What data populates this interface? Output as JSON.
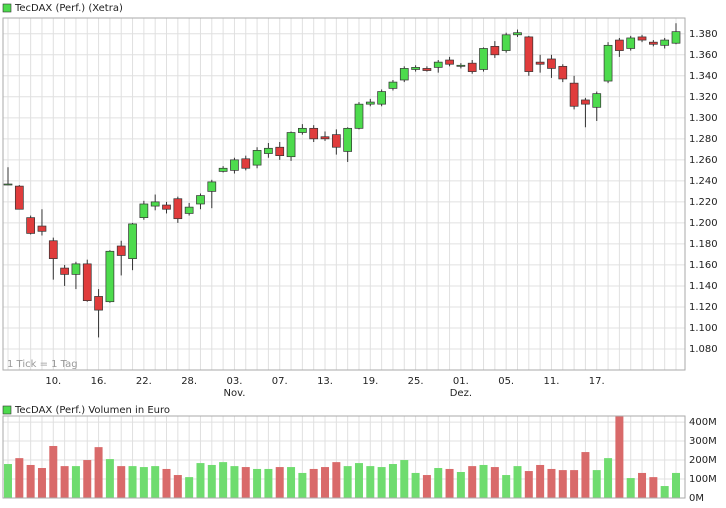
{
  "chart_data": [
    {
      "type": "candlestick",
      "title": "TecDAX (Perf.) (Xetra)",
      "annotation": "1 Tick = 1 Tag",
      "categories": [
        null,
        null,
        null,
        null,
        "10.",
        null,
        null,
        null,
        "16.",
        null,
        null,
        null,
        "22.",
        null,
        null,
        null,
        "28.",
        null,
        null,
        null,
        "03.",
        null,
        null,
        null,
        "07.",
        null,
        null,
        null,
        "13.",
        null,
        null,
        null,
        "19.",
        null,
        null,
        null,
        "25.",
        null,
        null,
        null,
        "01.",
        null,
        null,
        null,
        "05.",
        null,
        null,
        null,
        "11.",
        null,
        null,
        null,
        "17.",
        null,
        null,
        null,
        null,
        null,
        null,
        null
      ],
      "category_sublabels": [
        null,
        null,
        null,
        null,
        null,
        null,
        null,
        null,
        null,
        null,
        null,
        null,
        null,
        null,
        null,
        null,
        null,
        null,
        null,
        null,
        "Nov.",
        null,
        null,
        null,
        null,
        null,
        null,
        null,
        null,
        null,
        null,
        null,
        null,
        null,
        null,
        null,
        null,
        null,
        null,
        null,
        "Dez.",
        null,
        null,
        null,
        null,
        null,
        null,
        null,
        null,
        null,
        null,
        null,
        null,
        null,
        null,
        null,
        null,
        null,
        null,
        null
      ],
      "open": [
        1237,
        1235,
        1205,
        1197,
        1183,
        1157,
        1151,
        1161,
        1130,
        1125,
        1178,
        1166,
        1205,
        1216,
        1217,
        1223,
        1209,
        1218,
        1230,
        1249,
        1250,
        1261,
        1255,
        1266,
        1272,
        1263,
        1286,
        1290,
        1282,
        1284,
        1268,
        1290,
        1313,
        1313,
        1328,
        1336,
        1346,
        1347,
        1348,
        1355,
        1349,
        1352,
        1346,
        1368,
        1364,
        1379,
        1377,
        1353,
        1356,
        1349,
        1333,
        1317,
        1310,
        1335,
        1374,
        1366,
        1377,
        1372,
        1369,
        1371
      ],
      "high": [
        1253,
        1236,
        1207,
        1213,
        1186,
        1160,
        1163,
        1165,
        1137,
        1174,
        1183,
        1200,
        1221,
        1227,
        1220,
        1225,
        1219,
        1228,
        1241,
        1254,
        1262,
        1264,
        1272,
        1276,
        1277,
        1287,
        1294,
        1293,
        1287,
        1289,
        1291,
        1315,
        1318,
        1327,
        1336,
        1349,
        1350,
        1349,
        1355,
        1358,
        1352,
        1355,
        1367,
        1373,
        1381,
        1384,
        1378,
        1360,
        1360,
        1351,
        1340,
        1319,
        1325,
        1372,
        1376,
        1378,
        1379,
        1374,
        1376,
        1390
      ],
      "low": [
        1236,
        1213,
        1189,
        1188,
        1146,
        1140,
        1137,
        1125,
        1091,
        1124,
        1150,
        1155,
        1203,
        1212,
        1209,
        1200,
        1207,
        1213,
        1214,
        1248,
        1247,
        1250,
        1252,
        1262,
        1260,
        1259,
        1284,
        1277,
        1278,
        1265,
        1258,
        1289,
        1311,
        1311,
        1326,
        1334,
        1344,
        1344,
        1343,
        1349,
        1347,
        1342,
        1344,
        1357,
        1362,
        1377,
        1340,
        1343,
        1338,
        1334,
        1308,
        1291,
        1297,
        1333,
        1358,
        1364,
        1372,
        1368,
        1366,
        1370
      ],
      "close": [
        1237,
        1213,
        1190,
        1192,
        1166,
        1151,
        1161,
        1126,
        1117,
        1173,
        1169,
        1199,
        1218,
        1220,
        1213,
        1204,
        1215,
        1226,
        1239,
        1252,
        1260,
        1252,
        1269,
        1271,
        1264,
        1286,
        1290,
        1280,
        1280,
        1272,
        1290,
        1313,
        1315,
        1325,
        1334,
        1347,
        1348,
        1345,
        1353,
        1351,
        1350,
        1344,
        1366,
        1360,
        1379,
        1381,
        1344,
        1351,
        1347,
        1337,
        1311,
        1313,
        1323,
        1369,
        1364,
        1376,
        1374,
        1370,
        1374,
        1382
      ],
      "up_color": "#4ddb4d",
      "down_color": "#e03c3c",
      "ylim": [
        1060,
        1395
      ],
      "yticks": [
        {
          "value": 1080,
          "label": "1.080"
        },
        {
          "value": 1100,
          "label": "1.100"
        },
        {
          "value": 1120,
          "label": "1.120"
        },
        {
          "value": 1140,
          "label": "1.140"
        },
        {
          "value": 1160,
          "label": "1.160"
        },
        {
          "value": 1180,
          "label": "1.180"
        },
        {
          "value": 1200,
          "label": "1.200"
        },
        {
          "value": 1220,
          "label": "1.220"
        },
        {
          "value": 1240,
          "label": "1.240"
        },
        {
          "value": 1260,
          "label": "1.260"
        },
        {
          "value": 1280,
          "label": "1.280"
        },
        {
          "value": 1300,
          "label": "1.300"
        },
        {
          "value": 1320,
          "label": "1.320"
        },
        {
          "value": 1340,
          "label": "1.340"
        },
        {
          "value": 1360,
          "label": "1.360"
        },
        {
          "value": 1380,
          "label": "1.380"
        }
      ],
      "grid": true
    },
    {
      "type": "bar",
      "title": "TecDAX (Perf.) Volumen in Euro",
      "values": [
        179,
        210,
        174,
        158,
        274,
        168,
        168,
        200,
        268,
        205,
        168,
        168,
        163,
        168,
        153,
        121,
        110,
        184,
        174,
        189,
        168,
        163,
        153,
        153,
        163,
        163,
        132,
        153,
        163,
        189,
        168,
        184,
        168,
        163,
        179,
        200,
        132,
        121,
        158,
        153,
        137,
        168,
        174,
        163,
        121,
        168,
        142,
        174,
        153,
        147,
        147,
        242,
        147,
        210,
        430,
        105,
        132,
        110,
        63,
        132
      ],
      "up_color": "#6fdc6f",
      "down_color": "#d96a6a",
      "ylim": [
        0,
        432
      ],
      "yticks": [
        {
          "value": 0,
          "label": "0M"
        },
        {
          "value": 100,
          "label": "100M"
        },
        {
          "value": 200,
          "label": "200M"
        },
        {
          "value": 300,
          "label": "300M"
        },
        {
          "value": 400,
          "label": "400M"
        }
      ],
      "grid": true
    }
  ]
}
